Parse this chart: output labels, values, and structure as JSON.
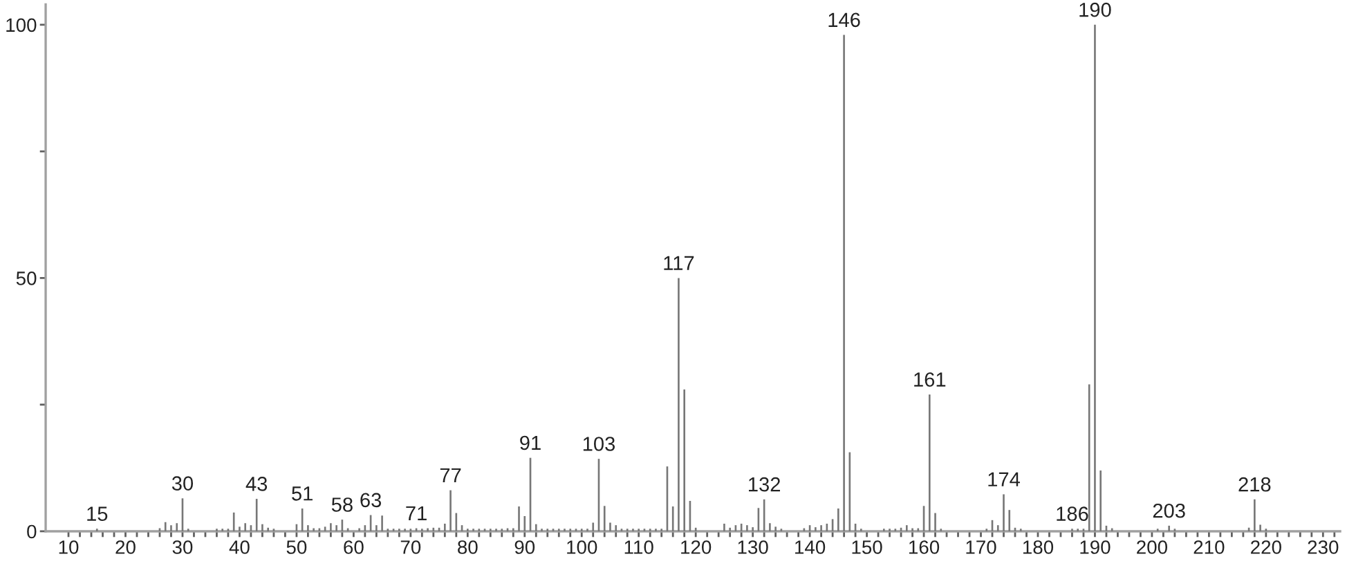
{
  "chart_data": {
    "type": "bar",
    "color": "#777777",
    "grid": false,
    "x": [
      15,
      26,
      27,
      28,
      29,
      30,
      31,
      36,
      37,
      38,
      39,
      40,
      41,
      42,
      43,
      44,
      45,
      46,
      50,
      51,
      52,
      53,
      54,
      55,
      56,
      57,
      58,
      59,
      61,
      62,
      63,
      64,
      65,
      66,
      67,
      68,
      69,
      70,
      71,
      72,
      73,
      74,
      75,
      76,
      77,
      78,
      79,
      80,
      81,
      82,
      83,
      84,
      85,
      86,
      87,
      88,
      89,
      90,
      91,
      92,
      93,
      94,
      95,
      96,
      97,
      98,
      99,
      100,
      101,
      102,
      103,
      104,
      105,
      106,
      107,
      108,
      109,
      110,
      111,
      112,
      113,
      114,
      115,
      116,
      117,
      118,
      119,
      120,
      125,
      126,
      127,
      128,
      129,
      130,
      131,
      132,
      133,
      134,
      135,
      139,
      140,
      141,
      142,
      143,
      144,
      145,
      146,
      147,
      148,
      149,
      153,
      154,
      155,
      156,
      157,
      158,
      159,
      160,
      161,
      162,
      163,
      171,
      172,
      173,
      174,
      175,
      176,
      177,
      186,
      187,
      188,
      189,
      190,
      191,
      192,
      193,
      201,
      203,
      204,
      217,
      218,
      219,
      220
    ],
    "values": [
      0.5,
      0.6,
      1.8,
      1.2,
      1.6,
      6.5,
      0.5,
      0.5,
      0.5,
      0.5,
      3.7,
      0.9,
      1.6,
      1.2,
      6.4,
      1.4,
      0.7,
      0.5,
      1.4,
      4.5,
      1.2,
      0.6,
      0.6,
      0.9,
      1.6,
      1.2,
      2.3,
      0.6,
      0.6,
      1.2,
      3.2,
      1.2,
      3.1,
      0.5,
      0.5,
      0.5,
      0.5,
      0.5,
      0.6,
      0.5,
      0.6,
      0.7,
      0.7,
      1.5,
      8.1,
      3.6,
      1.2,
      0.5,
      0.5,
      0.5,
      0.5,
      0.5,
      0.5,
      0.5,
      0.6,
      0.6,
      4.9,
      3.0,
      14.5,
      1.4,
      0.5,
      0.5,
      0.5,
      0.5,
      0.5,
      0.5,
      0.5,
      0.5,
      0.5,
      1.7,
      14.3,
      5.0,
      1.7,
      1.2,
      0.5,
      0.5,
      0.5,
      0.5,
      0.5,
      0.5,
      0.5,
      0.5,
      12.8,
      4.9,
      50,
      28,
      6.0,
      0.7,
      1.5,
      0.7,
      1.2,
      1.5,
      1.2,
      0.8,
      4.6,
      6.3,
      1.6,
      0.9,
      0.5,
      0.6,
      1.2,
      0.8,
      1.2,
      1.5,
      2.4,
      4.5,
      98,
      15.6,
      1.5,
      0.5,
      0.5,
      0.5,
      0.5,
      0.7,
      1.2,
      0.6,
      0.6,
      5.0,
      27,
      3.6,
      0.5,
      0.5,
      2.2,
      1.2,
      7.3,
      4.2,
      0.7,
      0.5,
      0.5,
      0.5,
      0.5,
      29,
      100,
      12,
      1.1,
      0.6,
      0.5,
      1.1,
      0.5,
      0.7,
      6.3,
      1.3,
      0.5
    ],
    "xlim": [
      6,
      233
    ],
    "ylim": [
      0,
      104
    ],
    "xticks": [
      10,
      {
        "value": 12,
        "label": null
      },
      {
        "value": 14,
        "label": null
      },
      {
        "value": 16,
        "label": null
      },
      {
        "value": 18,
        "label": null
      },
      20,
      {
        "value": 22,
        "label": null
      },
      {
        "value": 24,
        "label": null
      },
      {
        "value": 26,
        "label": null
      },
      {
        "value": 28,
        "label": null
      },
      30,
      {
        "value": 32,
        "label": null
      },
      {
        "value": 34,
        "label": null
      },
      {
        "value": 36,
        "label": null
      },
      {
        "value": 38,
        "label": null
      },
      40,
      {
        "value": 42,
        "label": null
      },
      {
        "value": 44,
        "label": null
      },
      {
        "value": 46,
        "label": null
      },
      {
        "value": 48,
        "label": null
      },
      50,
      {
        "value": 52,
        "label": null
      },
      {
        "value": 54,
        "label": null
      },
      {
        "value": 56,
        "label": null
      },
      {
        "value": 58,
        "label": null
      },
      60,
      {
        "value": 62,
        "label": null
      },
      {
        "value": 64,
        "label": null
      },
      {
        "value": 66,
        "label": null
      },
      {
        "value": 68,
        "label": null
      },
      70,
      {
        "value": 72,
        "label": null
      },
      {
        "value": 74,
        "label": null
      },
      {
        "value": 76,
        "label": null
      },
      {
        "value": 78,
        "label": null
      },
      80,
      {
        "value": 82,
        "label": null
      },
      {
        "value": 84,
        "label": null
      },
      {
        "value": 86,
        "label": null
      },
      {
        "value": 88,
        "label": null
      },
      90,
      {
        "value": 92,
        "label": null
      },
      {
        "value": 94,
        "label": null
      },
      {
        "value": 96,
        "label": null
      },
      {
        "value": 98,
        "label": null
      },
      100,
      {
        "value": 102,
        "label": null
      },
      {
        "value": 104,
        "label": null
      },
      {
        "value": 106,
        "label": null
      },
      {
        "value": 108,
        "label": null
      },
      110,
      {
        "value": 112,
        "label": null
      },
      {
        "value": 114,
        "label": null
      },
      {
        "value": 116,
        "label": null
      },
      {
        "value": 118,
        "label": null
      },
      120,
      {
        "value": 122,
        "label": null
      },
      {
        "value": 124,
        "label": null
      },
      {
        "value": 126,
        "label": null
      },
      {
        "value": 128,
        "label": null
      },
      130,
      {
        "value": 132,
        "label": null
      },
      {
        "value": 134,
        "label": null
      },
      {
        "value": 136,
        "label": null
      },
      {
        "value": 138,
        "label": null
      },
      140,
      {
        "value": 142,
        "label": null
      },
      {
        "value": 144,
        "label": null
      },
      {
        "value": 146,
        "label": null
      },
      {
        "value": 148,
        "label": null
      },
      150,
      {
        "value": 152,
        "label": null
      },
      {
        "value": 154,
        "label": null
      },
      {
        "value": 156,
        "label": null
      },
      {
        "value": 158,
        "label": null
      },
      160,
      {
        "value": 162,
        "label": null
      },
      {
        "value": 164,
        "label": null
      },
      {
        "value": 166,
        "label": null
      },
      {
        "value": 168,
        "label": null
      },
      170,
      {
        "value": 172,
        "label": null
      },
      {
        "value": 174,
        "label": null
      },
      {
        "value": 176,
        "label": null
      },
      {
        "value": 178,
        "label": null
      },
      180,
      {
        "value": 182,
        "label": null
      },
      {
        "value": 184,
        "label": null
      },
      {
        "value": 186,
        "label": null
      },
      {
        "value": 188,
        "label": null
      },
      190,
      {
        "value": 192,
        "label": null
      },
      {
        "value": 194,
        "label": null
      },
      {
        "value": 196,
        "label": null
      },
      {
        "value": 198,
        "label": null
      },
      200,
      {
        "value": 202,
        "label": null
      },
      {
        "value": 204,
        "label": null
      },
      {
        "value": 206,
        "label": null
      },
      {
        "value": 208,
        "label": null
      },
      210,
      {
        "value": 212,
        "label": null
      },
      {
        "value": 214,
        "label": null
      },
      {
        "value": 216,
        "label": null
      },
      {
        "value": 218,
        "label": null
      },
      220,
      {
        "value": 222,
        "label": null
      },
      {
        "value": 224,
        "label": null
      },
      {
        "value": 226,
        "label": null
      },
      {
        "value": 228,
        "label": null
      },
      230,
      {
        "value": 232,
        "label": null
      }
    ],
    "yticks": [
      0,
      {
        "value": 25,
        "label": null
      },
      50,
      {
        "value": 75,
        "label": null
      },
      100
    ],
    "annotations": [
      {
        "text": "15",
        "x": 15,
        "y": 0.5
      },
      {
        "text": "30",
        "x": 30,
        "y": 6.5
      },
      {
        "text": "43",
        "x": 43,
        "y": 6.4
      },
      {
        "text": "51",
        "x": 51,
        "y": 4.5
      },
      {
        "text": "58",
        "x": 58,
        "y": 2.3
      },
      {
        "text": "63",
        "x": 63,
        "y": 3.2
      },
      {
        "text": "71",
        "x": 71,
        "y": 0.6
      },
      {
        "text": "77",
        "x": 77,
        "y": 8.1
      },
      {
        "text": "91",
        "x": 91,
        "y": 14.5
      },
      {
        "text": "103",
        "x": 103,
        "y": 14.3
      },
      {
        "text": "117",
        "x": 117,
        "y": 50
      },
      {
        "text": "132",
        "x": 132,
        "y": 6.3
      },
      {
        "text": "146",
        "x": 146,
        "y": 98
      },
      {
        "text": "161",
        "x": 161,
        "y": 27
      },
      {
        "text": "174",
        "x": 174,
        "y": 7.3
      },
      {
        "text": "186",
        "x": 186,
        "y": 0.5
      },
      {
        "text": "190",
        "x": 190,
        "y": 100
      },
      {
        "text": "203",
        "x": 203,
        "y": 1.1
      },
      {
        "text": "218",
        "x": 218,
        "y": 6.3
      }
    ]
  }
}
